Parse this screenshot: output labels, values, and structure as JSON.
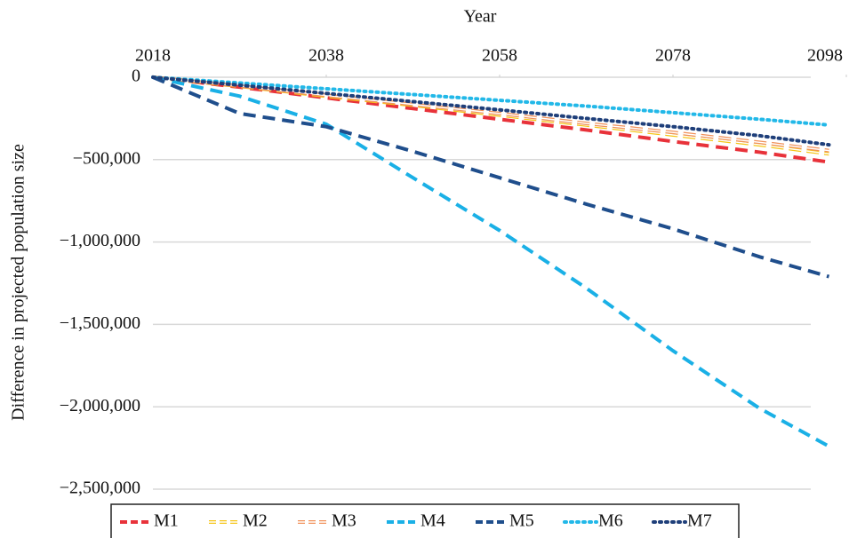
{
  "chart_data": {
    "type": "line",
    "x_label": "Year",
    "y_label": "Difference in projected population size",
    "x": [
      2018,
      2028,
      2038,
      2048,
      2058,
      2068,
      2078,
      2088,
      2096
    ],
    "xlim": [
      2018,
      2098
    ],
    "xticks": [
      2018,
      2038,
      2058,
      2078,
      2098
    ],
    "ylim": [
      -2500000,
      0
    ],
    "yticks": [
      {
        "value": 0,
        "label": "0"
      },
      {
        "value": -500000,
        "label": "−500,000"
      },
      {
        "value": -1000000,
        "label": "−1,000,000"
      },
      {
        "value": -1500000,
        "label": "−1,500,000"
      },
      {
        "value": -2000000,
        "label": "−2,000,000"
      },
      {
        "value": -2500000,
        "label": "−2,500,000"
      }
    ],
    "grid": true,
    "legend": "bottom",
    "series": [
      {
        "name": "M1",
        "color": "#e8323a",
        "dash": "dashed",
        "values": [
          0,
          -60000,
          -125000,
          -190000,
          -255000,
          -320000,
          -390000,
          -455000,
          -515000
        ]
      },
      {
        "name": "M2",
        "color": "#f5c518",
        "dash": "hollow",
        "values": [
          0,
          -55000,
          -115000,
          -170000,
          -230000,
          -290000,
          -350000,
          -410000,
          -465000
        ]
      },
      {
        "name": "M3",
        "color": "#f0915a",
        "dash": "hollow",
        "values": [
          0,
          -53000,
          -110000,
          -165000,
          -220000,
          -280000,
          -335000,
          -395000,
          -445000
        ]
      },
      {
        "name": "M4",
        "color": "#1ab0e6",
        "dash": "dashed",
        "values": [
          0,
          -115000,
          -285000,
          -610000,
          -930000,
          -1280000,
          -1660000,
          -2010000,
          -2240000
        ]
      },
      {
        "name": "M5",
        "color": "#1f4e8c",
        "dash": "dashed",
        "values": [
          0,
          -220000,
          -300000,
          -450000,
          -610000,
          -770000,
          -920000,
          -1090000,
          -1210000
        ]
      },
      {
        "name": "M6",
        "color": "#22b8e8",
        "dash": "dotted",
        "values": [
          0,
          -35000,
          -70000,
          -105000,
          -140000,
          -175000,
          -215000,
          -255000,
          -290000
        ]
      },
      {
        "name": "M7",
        "color": "#1f3f7a",
        "dash": "dotted",
        "values": [
          0,
          -48000,
          -98000,
          -148000,
          -198000,
          -250000,
          -300000,
          -355000,
          -410000
        ]
      }
    ]
  }
}
